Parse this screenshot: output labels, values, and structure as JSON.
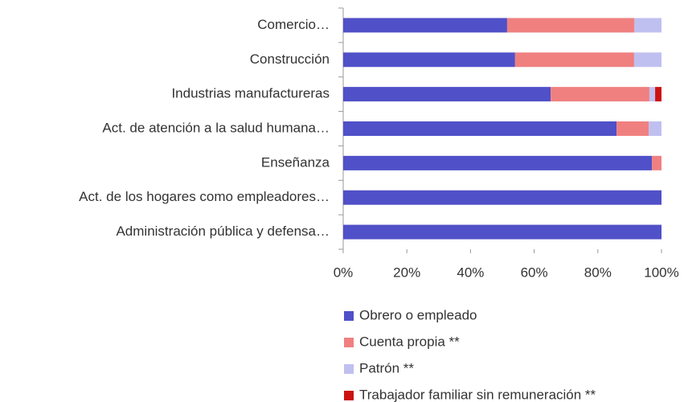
{
  "chart_data": {
    "type": "stacked_barh",
    "categories": [
      "Comercio…",
      "Construcción",
      "Industrias manufactureras",
      "Act. de atención a la salud humana…",
      "Enseñanza",
      "Act. de los hogares como empleadores…",
      "Administración pública y defensa…"
    ],
    "series": [
      {
        "name": "Obrero o empleado",
        "color": "#5050c8",
        "values": [
          51.5,
          54,
          65.2,
          85.9,
          97,
          100,
          100
        ]
      },
      {
        "name": "Cuenta propia **",
        "color": "#f08080",
        "values": [
          40,
          37.4,
          31,
          10.1,
          3,
          0,
          0
        ]
      },
      {
        "name": "Patrón **",
        "color": "#c0c0f0",
        "values": [
          8.5,
          8.6,
          1.8,
          4,
          0,
          0,
          0
        ]
      },
      {
        "name": "Trabajador familiar sin remuneración **",
        "color": "#cc1111",
        "values": [
          0,
          0,
          2,
          0,
          0,
          0,
          0
        ]
      }
    ],
    "xlim": [
      0,
      100
    ],
    "xticks": [
      {
        "value": 0,
        "label": "0%"
      },
      {
        "value": 20,
        "label": "20%"
      },
      {
        "value": 40,
        "label": "40%"
      },
      {
        "value": 60,
        "label": "60%"
      },
      {
        "value": 80,
        "label": "80%"
      },
      {
        "value": 100,
        "label": "100%"
      }
    ],
    "grid": false,
    "legend": "bottom"
  }
}
